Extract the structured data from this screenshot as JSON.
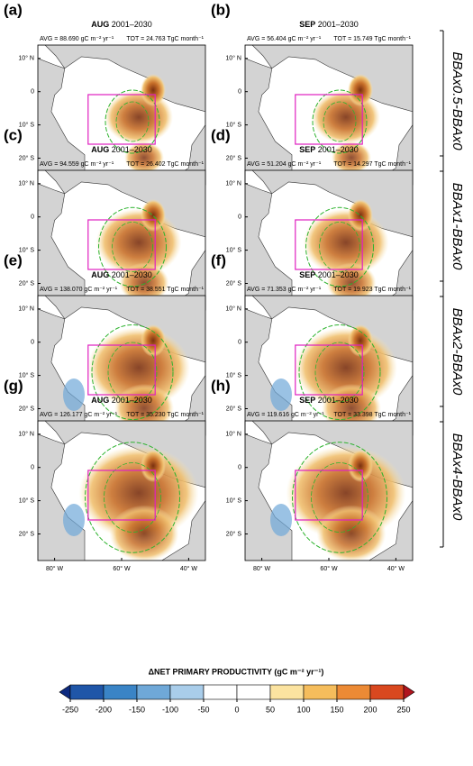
{
  "panels": [
    {
      "label": "(a)",
      "month": "AUG",
      "period": "2001–2030",
      "avg": "AVG = 88.690 gC m⁻² yr⁻¹",
      "tot": "TOT = 24.763 TgC month⁻¹"
    },
    {
      "label": "(b)",
      "month": "SEP",
      "period": "2001–2030",
      "avg": "AVG = 56.404 gC m⁻² yr⁻¹",
      "tot": "TOT = 15.749 TgC month⁻¹"
    },
    {
      "label": "(c)",
      "month": "AUG",
      "period": "2001–2030",
      "avg": "AVG = 94.559 gC m⁻² yr⁻¹",
      "tot": "TOT = 26.402 TgC month⁻¹"
    },
    {
      "label": "(d)",
      "month": "SEP",
      "period": "2001–2030",
      "avg": "AVG = 51.204 gC m⁻² yr⁻¹",
      "tot": "TOT = 14.297 TgC month⁻¹"
    },
    {
      "label": "(e)",
      "month": "AUG",
      "period": "2001–2030",
      "avg": "AVG = 138.070 gC m⁻² yr⁻¹",
      "tot": "TOT = 38.551 TgC month⁻¹"
    },
    {
      "label": "(f)",
      "month": "SEP",
      "period": "2001–2030",
      "avg": "AVG = 71.353 gC m⁻² yr⁻¹",
      "tot": "TOT = 19.923 TgC month⁻¹"
    },
    {
      "label": "(g)",
      "month": "AUG",
      "period": "2001–2030",
      "avg": "AVG = 126.177 gC m⁻² yr⁻¹",
      "tot": "TOT = 35.230 TgC month⁻¹"
    },
    {
      "label": "(h)",
      "month": "SEP",
      "period": "2001–2030",
      "avg": "AVG = 119.616 gC m⁻² yr⁻¹",
      "tot": "TOT = 33.398 TgC month⁻¹"
    }
  ],
  "rows": [
    "BBAx0.5-BBAx0",
    "BBAx1-BBAx0",
    "BBAx2-BBAx0",
    "BBAx4-BBAx0"
  ],
  "lat_labels": [
    "10° N",
    "0",
    "10° S",
    "20° S"
  ],
  "lon_labels": [
    "80° W",
    "60° W",
    "40° W"
  ],
  "colorbar": {
    "title": "ΔNET PRIMARY PRODUCTIVITY (gC m⁻² yr⁻¹)",
    "ticks": [
      -250,
      -200,
      -150,
      -100,
      -50,
      0,
      50,
      100,
      150,
      200,
      250
    ],
    "colors": [
      "#0d2a80",
      "#1f56a8",
      "#3a84c6",
      "#6fa8d8",
      "#a9cdea",
      "#ffffff",
      "#ffffff",
      "#fbe3a0",
      "#f5bd5c",
      "#ec8a35",
      "#d9481f",
      "#b0151e"
    ]
  }
}
